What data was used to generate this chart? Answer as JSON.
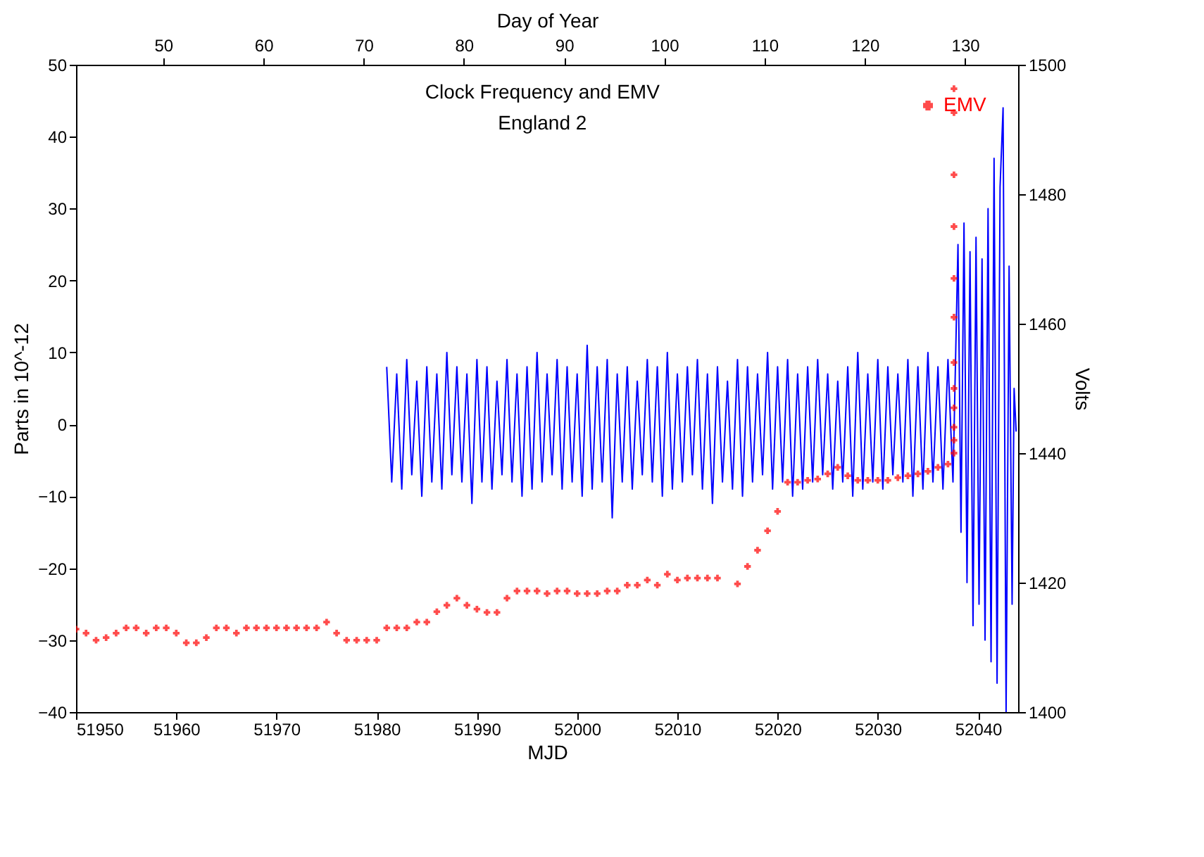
{
  "chart_data": {
    "type": "line",
    "title": "Clock Frequency and EMV",
    "subtitle": "England 2",
    "xlabel": "MJD",
    "x2label": "Day of Year",
    "ylabel": "Parts in 10^-12",
    "y2label": "Volts",
    "xlim": [
      51950,
      52044
    ],
    "xticks": [
      51950,
      51960,
      51970,
      51980,
      51990,
      52000,
      52010,
      52020,
      52030,
      52040
    ],
    "x2lim": [
      41.3,
      135.3
    ],
    "x2ticks": [
      50,
      60,
      70,
      80,
      90,
      100,
      110,
      120,
      130
    ],
    "ylim": [
      -40,
      50
    ],
    "yticks": [
      -40,
      -30,
      -20,
      -10,
      0,
      10,
      20,
      30,
      40,
      50
    ],
    "y2lim": [
      1400,
      1500
    ],
    "y2ticks": [
      1400,
      1420,
      1440,
      1460,
      1480,
      1500
    ],
    "legend": "top right",
    "grid": false,
    "series": [
      {
        "type": "line",
        "color": "#0000ff",
        "x": [
          51981,
          51981.5,
          51982,
          51982.5,
          51983,
          51983.5,
          51984,
          51984.5,
          51985,
          51985.5,
          51986,
          51986.5,
          51987,
          51987.5,
          51988,
          51988.5,
          51989,
          51989.5,
          51990,
          51990.5,
          51991,
          51991.5,
          51992,
          51992.5,
          51993,
          51993.5,
          51994,
          51994.5,
          51995,
          51995.5,
          51996,
          51996.5,
          51997,
          51997.5,
          51998,
          51998.5,
          51999,
          51999.5,
          52000,
          52000.5,
          52001,
          52001.5,
          52002,
          52002.5,
          52003,
          52003.5,
          52004,
          52004.5,
          52005,
          52005.5,
          52006,
          52006.5,
          52007,
          52007.5,
          52008,
          52008.5,
          52009,
          52009.5,
          52010,
          52010.5,
          52011,
          52011.5,
          52012,
          52012.5,
          52013,
          52013.5,
          52014,
          52014.5,
          52015,
          52015.5,
          52016,
          52016.5,
          52017,
          52017.5,
          52018,
          52018.5,
          52019,
          52019.5,
          52020,
          52020.5,
          52021,
          52021.5,
          52022,
          52022.5,
          52023,
          52023.5,
          52024,
          52024.5,
          52025,
          52025.5,
          52026,
          52026.5,
          52027,
          52027.5,
          52028,
          52028.5,
          52029,
          52029.5,
          52030,
          52030.5,
          52031,
          52031.5,
          52032,
          52032.5,
          52033,
          52033.5,
          52034,
          52034.5,
          52035,
          52035.5,
          52036,
          52036.5,
          52037,
          52037.5,
          52038,
          52038.3,
          52038.6,
          52038.9,
          52039.2,
          52039.5,
          52039.8,
          52040.1,
          52040.4,
          52040.7,
          52041,
          52041.3,
          52041.6,
          52041.9,
          52042.2,
          52042.5,
          52042.8,
          52043.1,
          52043.4,
          52043.6,
          52043.8
        ],
        "values": [
          8,
          -8,
          7,
          -9,
          9,
          -7,
          6,
          -10,
          8,
          -8,
          7,
          -9,
          10,
          -7,
          8,
          -8,
          7,
          -11,
          9,
          -8,
          8,
          -9,
          6,
          -7,
          9,
          -8,
          7,
          -10,
          8,
          -9,
          10,
          -8,
          7,
          -7,
          9,
          -9,
          8,
          -8,
          7,
          -10,
          11,
          -9,
          8,
          -8,
          9,
          -13,
          7,
          -8,
          8,
          -9,
          6,
          -7,
          9,
          -8,
          8,
          -10,
          10,
          -9,
          7,
          -8,
          8,
          -7,
          9,
          -9,
          7,
          -11,
          8,
          -8,
          6,
          -9,
          9,
          -10,
          8,
          -8,
          7,
          -7,
          10,
          -9,
          8,
          -8,
          9,
          -10,
          7,
          -9,
          8,
          -8,
          9,
          -7,
          7,
          -9,
          6,
          -8,
          8,
          -10,
          10,
          -9,
          7,
          -8,
          9,
          -9,
          8,
          -7,
          7,
          -8,
          9,
          -10,
          8,
          -9,
          10,
          -8,
          8,
          -9,
          9,
          -8,
          25,
          -15,
          28,
          -22,
          24,
          -28,
          26,
          -25,
          23,
          -30,
          30,
          -33,
          37,
          -36,
          33,
          44,
          -40,
          22,
          -25,
          5,
          -1
        ]
      },
      {
        "type": "scatter",
        "name": "EMV",
        "color": "#ff0000",
        "axis": "y2",
        "marker": "cross",
        "x": [
          51950,
          51951,
          51952,
          51953,
          51954,
          51955,
          51956,
          51957,
          51958,
          51959,
          51960,
          51961,
          51962,
          51963,
          51964,
          51965,
          51966,
          51967,
          51968,
          51969,
          51970,
          51971,
          51972,
          51973,
          51974,
          51975,
          51976,
          51977,
          51978,
          51979,
          51980,
          51981,
          51982,
          51983,
          51984,
          51985,
          51986,
          51987,
          51988,
          51989,
          51990,
          51991,
          51992,
          51993,
          51994,
          51995,
          51996,
          51997,
          51998,
          51999,
          52000,
          52001,
          52002,
          52003,
          52004,
          52005,
          52006,
          52007,
          52008,
          52009,
          52010,
          52011,
          52012,
          52013,
          52014,
          52016,
          52017,
          52018,
          52019,
          52020,
          52021,
          52022,
          52023,
          52024,
          52025,
          52026,
          52027,
          52028,
          52029,
          52030,
          52031,
          52032,
          52033,
          52034,
          52035,
          52036,
          52037,
          52037.6,
          52037.6,
          52037.6,
          52037.6,
          52037.6,
          52037.6,
          52037.6,
          52037.6,
          52037.6,
          52037.6,
          52037.6,
          52037.6
        ],
        "values": [
          1412.8,
          1412.2,
          1411.1,
          1411.5,
          1412.2,
          1413,
          1413,
          1412.2,
          1413,
          1413,
          1412.2,
          1410.7,
          1410.7,
          1411.5,
          1413,
          1413,
          1412.2,
          1413,
          1413,
          1413,
          1413,
          1413,
          1413,
          1413,
          1413,
          1413.9,
          1412.2,
          1411.1,
          1411.1,
          1411.1,
          1411.1,
          1413,
          1413,
          1413,
          1413.9,
          1413.9,
          1415.5,
          1416.5,
          1417.6,
          1416.5,
          1415.9,
          1415.4,
          1415.4,
          1417.6,
          1418.7,
          1418.7,
          1418.7,
          1418.3,
          1418.7,
          1418.7,
          1418.3,
          1418.3,
          1418.3,
          1418.7,
          1418.7,
          1419.6,
          1419.6,
          1420.4,
          1419.6,
          1421.3,
          1420.4,
          1420.7,
          1420.7,
          1420.7,
          1420.7,
          1419.8,
          1422.5,
          1425,
          1428,
          1431,
          1435.5,
          1435.5,
          1435.8,
          1436,
          1436.8,
          1437.8,
          1436.5,
          1435.8,
          1435.8,
          1435.8,
          1435.8,
          1436.2,
          1436.5,
          1436.8,
          1437.2,
          1437.8,
          1438.3,
          1440,
          1442,
          1444,
          1447,
          1450,
          1454,
          1461,
          1467,
          1475,
          1483,
          1492.6,
          1496.3
        ]
      }
    ]
  }
}
